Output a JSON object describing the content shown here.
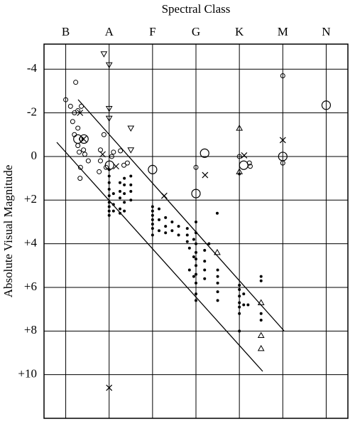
{
  "chart_data": {
    "type": "scatter",
    "x_label": "Spectral Class",
    "y_label": "Absolute Visual Magnitude",
    "xlim": [
      -0.5,
      6.5
    ],
    "ylim": [
      -5.15,
      12
    ],
    "y_inverted": true,
    "grid": true,
    "xticks": [
      {
        "value": 0,
        "label": "B"
      },
      {
        "value": 1,
        "label": "A"
      },
      {
        "value": 2,
        "label": "F"
      },
      {
        "value": 3,
        "label": "G"
      },
      {
        "value": 4,
        "label": "K"
      },
      {
        "value": 5,
        "label": "M"
      },
      {
        "value": 6,
        "label": "N"
      }
    ],
    "yticks": [
      -4,
      -2,
      0,
      {
        "value": 2,
        "label": "+2"
      },
      {
        "value": 4,
        "label": "+4"
      },
      {
        "value": 6,
        "label": "+6"
      },
      {
        "value": 8,
        "label": "+8"
      },
      {
        "value": 10,
        "label": "+10"
      }
    ],
    "series": [
      {
        "marker": "dot",
        "color": "#000000",
        "x": [
          1.0,
          1.0,
          1.0,
          1.0,
          1.0,
          1.0,
          1.0,
          1.0,
          1.0,
          1.1,
          1.1,
          1.1,
          1.25,
          1.25,
          1.25,
          1.25,
          1.25,
          1.35,
          1.35,
          1.35,
          1.35,
          1.35,
          1.5,
          1.5,
          1.5,
          1.5,
          2.0,
          2.0,
          2.0,
          2.0,
          2.0,
          2.0,
          2.0,
          2.15,
          2.15,
          2.15,
          2.3,
          2.3,
          2.3,
          2.45,
          2.45,
          2.6,
          2.6,
          2.8,
          2.8,
          2.8,
          3.0,
          3.0,
          3.0,
          3.0,
          3.0,
          3.0,
          3.0,
          3.0,
          3.0,
          3.0,
          2.95,
          2.95,
          2.95,
          2.85,
          2.85,
          3.2,
          3.2,
          3.2,
          3.2,
          3.5,
          3.5,
          3.5,
          3.5,
          3.5,
          3.49,
          3.3,
          4.0,
          4.0,
          4.0,
          4.0,
          4.0,
          4.0,
          4.0,
          4.0,
          4.1,
          4.1,
          4.2,
          4.5,
          4.5,
          4.5,
          4.5
        ],
        "y": [
          0.6,
          0.9,
          1.2,
          1.5,
          1.8,
          2.1,
          2.3,
          2.5,
          2.7,
          1.7,
          2.2,
          2.5,
          1.2,
          1.6,
          1.9,
          2.4,
          2.6,
          1.0,
          1.3,
          1.7,
          2.1,
          2.5,
          0.9,
          1.3,
          1.6,
          2.0,
          2.3,
          2.5,
          2.7,
          2.9,
          3.1,
          3.3,
          3.6,
          2.4,
          2.9,
          3.4,
          2.8,
          3.2,
          3.5,
          3.0,
          3.4,
          3.2,
          3.6,
          3.3,
          3.6,
          3.9,
          3.0,
          3.5,
          4.0,
          4.4,
          4.7,
          5.0,
          5.4,
          5.8,
          6.3,
          6.6,
          3.8,
          4.6,
          5.5,
          4.2,
          5.2,
          4.3,
          4.8,
          5.2,
          5.6,
          5.2,
          5.5,
          5.8,
          6.2,
          6.6,
          2.6,
          4.0,
          5.9,
          6.1,
          6.4,
          6.7,
          6.9,
          7.2,
          8.0,
          0.8,
          6.3,
          6.8,
          6.8,
          5.5,
          5.7,
          7.2,
          7.5
        ]
      },
      {
        "marker": "circle",
        "color": "#000000",
        "x": [
          0.0,
          0.23,
          0.11,
          0.2,
          0.28,
          0.36,
          0.16,
          0.28,
          0.2,
          0.36,
          0.28,
          0.41,
          0.31,
          0.52,
          0.34,
          0.33,
          0.44,
          0.8,
          0.8,
          0.88,
          0.93,
          1.1,
          1.26,
          1.34,
          1.42,
          0.77,
          1.06,
          3.0,
          4.0,
          4.23,
          4.25,
          5.0,
          5.0
        ],
        "y": [
          -2.6,
          -3.4,
          -2.3,
          -2.0,
          -2.1,
          -2.3,
          -1.6,
          -1.3,
          -1.0,
          -0.8,
          -0.5,
          -0.3,
          -0.2,
          0.2,
          0.5,
          1.0,
          -0.1,
          -0.3,
          0.2,
          -1.0,
          0.5,
          -0.2,
          -0.26,
          0.4,
          0.3,
          0.7,
          0.0,
          0.5,
          0.0,
          0.3,
          0.45,
          -3.7,
          0.3
        ]
      },
      {
        "marker": "circle-large",
        "color": "#000000",
        "x": [
          0.28,
          0.42,
          1.01,
          2.0,
          3.2,
          3.0,
          4.1,
          5.0,
          6.0
        ],
        "y": [
          -0.8,
          -0.8,
          0.4,
          0.6,
          -0.15,
          1.7,
          0.4,
          0.0,
          -2.35
        ]
      },
      {
        "marker": "cross",
        "color": "#000000",
        "x": [
          0.33,
          0.41,
          0.85,
          1.16,
          2.27,
          3.21,
          4.11,
          5.0,
          1.0
        ],
        "y": [
          -2.0,
          -0.8,
          -0.1,
          0.45,
          1.8,
          0.85,
          -0.05,
          -0.75,
          10.6
        ]
      },
      {
        "marker": "triangle-down",
        "color": "#000000",
        "x": [
          0.88,
          1.0,
          1.0,
          1.0,
          1.5,
          1.5
        ],
        "y": [
          -4.7,
          -4.2,
          -2.2,
          -1.75,
          -1.3,
          -0.3
        ]
      },
      {
        "marker": "triangle-up",
        "color": "#000000",
        "x": [
          4.0,
          4.0,
          3.49,
          4.5,
          4.5,
          4.5
        ],
        "y": [
          -1.3,
          0.7,
          4.4,
          6.7,
          8.2,
          8.8
        ]
      }
    ]
  }
}
